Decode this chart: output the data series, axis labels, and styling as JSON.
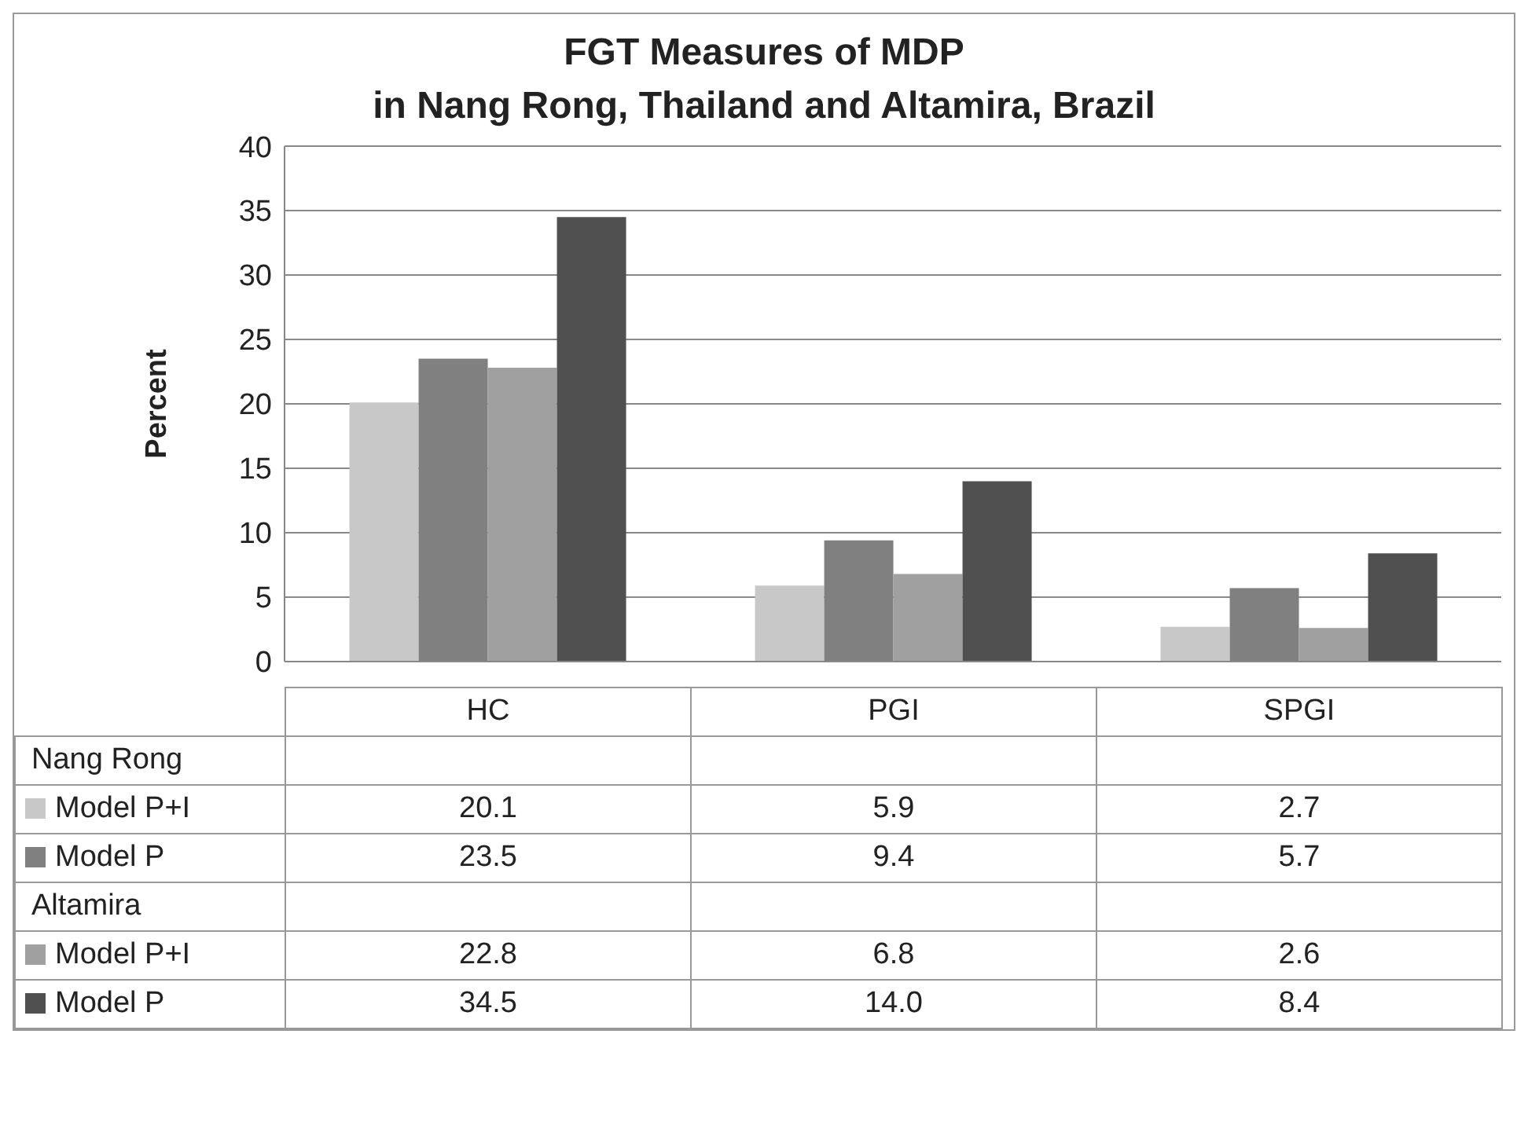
{
  "chart_data": {
    "type": "bar",
    "title": "FGT Measures of MDP\nin Nang Rong, Thailand and Altamira, Brazil",
    "ylabel": "Percent",
    "categories": [
      "HC",
      "PGI",
      "SPGI"
    ],
    "series": [
      {
        "name": "Model P+I",
        "color": "#c8c8c8",
        "values": [
          20.1,
          5.9,
          2.7
        ],
        "value_labels": [
          "20.1",
          "5.9",
          "2.7"
        ]
      },
      {
        "name": "Model P",
        "color": "#808080",
        "values": [
          23.5,
          9.4,
          5.7
        ],
        "value_labels": [
          "23.5",
          "9.4",
          "5.7"
        ]
      },
      {
        "name": "Model P+I",
        "color": "#a0a0a0",
        "values": [
          22.8,
          6.8,
          2.6
        ],
        "value_labels": [
          "22.8",
          "6.8",
          "2.6"
        ]
      },
      {
        "name": "Model P",
        "color": "#505050",
        "values": [
          34.5,
          14.0,
          8.4
        ],
        "value_labels": [
          "34.5",
          "14.0",
          "8.4"
        ]
      }
    ],
    "annotations": [
      "Nang Rong",
      "Altamira"
    ],
    "ylim": [
      0,
      40
    ],
    "yticks": [
      0,
      5,
      10,
      15,
      20,
      25,
      30,
      35,
      40
    ],
    "grid": "y",
    "legend": "bottom"
  }
}
